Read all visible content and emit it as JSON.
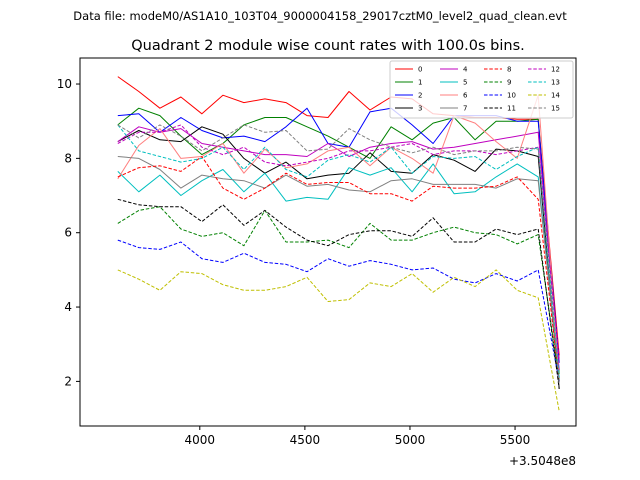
{
  "chart_data": {
    "type": "line",
    "suptitle": "Data file: modeM0/AS1A10_103T04_9000004158_29017cztM0_level2_quad_clean.evt",
    "title": "Quadrant 2 module wise count rates with 100.0s bins.",
    "xlabel": "",
    "ylabel": "",
    "x_offset_label": "+3.5048e8",
    "xlim": [
      3430,
      5790
    ],
    "ylim": [
      0.8,
      10.7
    ],
    "xticks": [
      4000,
      4500,
      5000,
      5500
    ],
    "yticks": [
      2,
      4,
      6,
      8,
      10
    ],
    "grid": false,
    "legend_position": "top-right",
    "legend_columns": 4,
    "x": [
      3610,
      3710,
      3810,
      3910,
      4010,
      4110,
      4210,
      4310,
      4410,
      4510,
      4610,
      4710,
      4810,
      4910,
      5010,
      5110,
      5210,
      5310,
      5410,
      5510,
      5610,
      5710
    ],
    "series": [
      {
        "name": "0",
        "color": "#ff0000",
        "style": "solid",
        "values": [
          10.2,
          9.8,
          9.35,
          9.65,
          9.2,
          9.7,
          9.5,
          9.6,
          9.5,
          9.15,
          9.1,
          9.8,
          9.3,
          9.65,
          9.6,
          9.2,
          9.15,
          9.1,
          9.1,
          9.05,
          9.05,
          2.7
        ]
      },
      {
        "name": "1",
        "color": "#008000",
        "style": "solid",
        "values": [
          8.9,
          9.35,
          9.15,
          8.6,
          8.1,
          8.4,
          8.9,
          9.1,
          9.1,
          8.85,
          8.6,
          8.3,
          8.0,
          8.85,
          8.5,
          8.95,
          9.1,
          8.5,
          9.0,
          9.0,
          9.05,
          2.2
        ]
      },
      {
        "name": "2",
        "color": "#0000ff",
        "style": "solid",
        "values": [
          9.15,
          9.2,
          8.7,
          9.1,
          8.75,
          8.55,
          8.6,
          8.45,
          8.85,
          9.35,
          8.4,
          8.3,
          9.25,
          9.35,
          8.9,
          8.4,
          9.15,
          9.15,
          9.15,
          9.0,
          9.0,
          2.5
        ]
      },
      {
        "name": "3",
        "color": "#000000",
        "style": "solid",
        "values": [
          8.45,
          8.75,
          8.5,
          8.45,
          8.85,
          8.65,
          8.0,
          7.6,
          7.9,
          7.45,
          7.55,
          7.6,
          8.15,
          7.65,
          7.6,
          8.1,
          7.95,
          7.65,
          8.25,
          8.2,
          8.05,
          1.8
        ]
      },
      {
        "name": "4",
        "color": "#bf00bf",
        "style": "solid",
        "values": [
          8.45,
          8.85,
          8.7,
          8.8,
          8.4,
          8.3,
          8.2,
          8.1,
          8.1,
          8.05,
          8.4,
          8.05,
          8.3,
          8.4,
          8.45,
          8.25,
          8.3,
          8.4,
          8.5,
          8.6,
          8.7,
          2.3
        ]
      },
      {
        "name": "5",
        "color": "#00bfbf",
        "style": "solid",
        "values": [
          7.65,
          7.1,
          7.55,
          7.0,
          7.4,
          7.7,
          7.1,
          7.6,
          6.85,
          6.95,
          6.9,
          7.75,
          7.55,
          7.75,
          7.1,
          7.85,
          7.05,
          7.1,
          7.5,
          7.85,
          7.5,
          2.1
        ]
      },
      {
        "name": "6",
        "color": "#ff7f7f",
        "style": "solid",
        "values": [
          7.45,
          8.35,
          8.8,
          8.0,
          8.05,
          8.4,
          7.6,
          8.25,
          7.75,
          7.85,
          8.2,
          8.3,
          7.8,
          8.3,
          8.0,
          7.6,
          9.15,
          8.95,
          8.45,
          8.0,
          9.7,
          2.0
        ]
      },
      {
        "name": "7",
        "color": "#808080",
        "style": "solid",
        "values": [
          8.05,
          8.0,
          7.7,
          7.2,
          7.55,
          7.45,
          7.4,
          7.2,
          7.55,
          7.25,
          7.3,
          7.15,
          7.1,
          7.4,
          7.45,
          7.3,
          7.3,
          7.3,
          7.2,
          7.45,
          7.4,
          2.0
        ]
      },
      {
        "name": "8",
        "color": "#ff0000",
        "style": "dashed",
        "values": [
          7.5,
          7.75,
          7.8,
          7.65,
          8.05,
          7.2,
          6.9,
          7.2,
          7.6,
          7.3,
          7.35,
          7.35,
          7.05,
          7.05,
          6.85,
          7.25,
          7.2,
          7.2,
          7.25,
          7.5,
          6.9,
          2.0
        ]
      },
      {
        "name": "9",
        "color": "#008000",
        "style": "dashed",
        "values": [
          6.25,
          6.6,
          6.7,
          6.1,
          5.9,
          6.0,
          5.65,
          6.6,
          5.75,
          5.75,
          5.8,
          5.6,
          6.25,
          5.8,
          5.8,
          6.0,
          6.15,
          6.0,
          5.95,
          5.7,
          5.95,
          2.0
        ]
      },
      {
        "name": "10",
        "color": "#0000ff",
        "style": "dashed",
        "values": [
          5.8,
          5.6,
          5.55,
          5.75,
          5.3,
          5.2,
          5.45,
          5.2,
          5.15,
          4.95,
          5.3,
          5.1,
          5.25,
          5.15,
          5.0,
          5.05,
          4.75,
          4.65,
          4.9,
          4.7,
          5.0,
          2.0
        ]
      },
      {
        "name": "11",
        "color": "#000000",
        "style": "dashed",
        "values": [
          6.9,
          6.75,
          6.7,
          6.7,
          6.3,
          6.75,
          6.2,
          6.6,
          6.15,
          5.8,
          5.65,
          5.95,
          6.05,
          6.05,
          5.9,
          6.4,
          5.75,
          5.75,
          6.1,
          5.95,
          6.1,
          1.8
        ]
      },
      {
        "name": "12",
        "color": "#bf00bf",
        "style": "dashed",
        "values": [
          8.4,
          8.7,
          8.7,
          8.9,
          8.3,
          8.1,
          8.3,
          7.9,
          7.8,
          7.9,
          8.0,
          8.2,
          8.2,
          8.3,
          8.4,
          8.1,
          8.2,
          8.2,
          8.1,
          8.2,
          8.3,
          2.6
        ]
      },
      {
        "name": "13",
        "color": "#00bfbf",
        "style": "dashed",
        "values": [
          8.9,
          8.2,
          8.05,
          7.9,
          8.0,
          8.3,
          7.7,
          8.3,
          7.7,
          7.5,
          7.95,
          8.1,
          7.9,
          8.3,
          7.6,
          8.05,
          8.0,
          8.05,
          7.7,
          8.05,
          8.3,
          2.1
        ]
      },
      {
        "name": "14",
        "color": "#bfbf00",
        "style": "dashed",
        "values": [
          5.0,
          4.75,
          4.45,
          4.95,
          4.9,
          4.6,
          4.45,
          4.45,
          4.55,
          4.8,
          4.15,
          4.2,
          4.65,
          4.55,
          4.9,
          4.4,
          4.8,
          4.55,
          5.0,
          4.45,
          4.25,
          1.2
        ]
      },
      {
        "name": "15",
        "color": "#808080",
        "style": "dashed",
        "values": [
          8.9,
          8.55,
          8.9,
          8.6,
          8.2,
          8.55,
          8.9,
          8.7,
          8.75,
          8.2,
          8.25,
          8.8,
          8.5,
          8.3,
          8.15,
          8.3,
          8.1,
          8.2,
          8.2,
          8.3,
          8.25,
          1.9
        ]
      }
    ]
  }
}
